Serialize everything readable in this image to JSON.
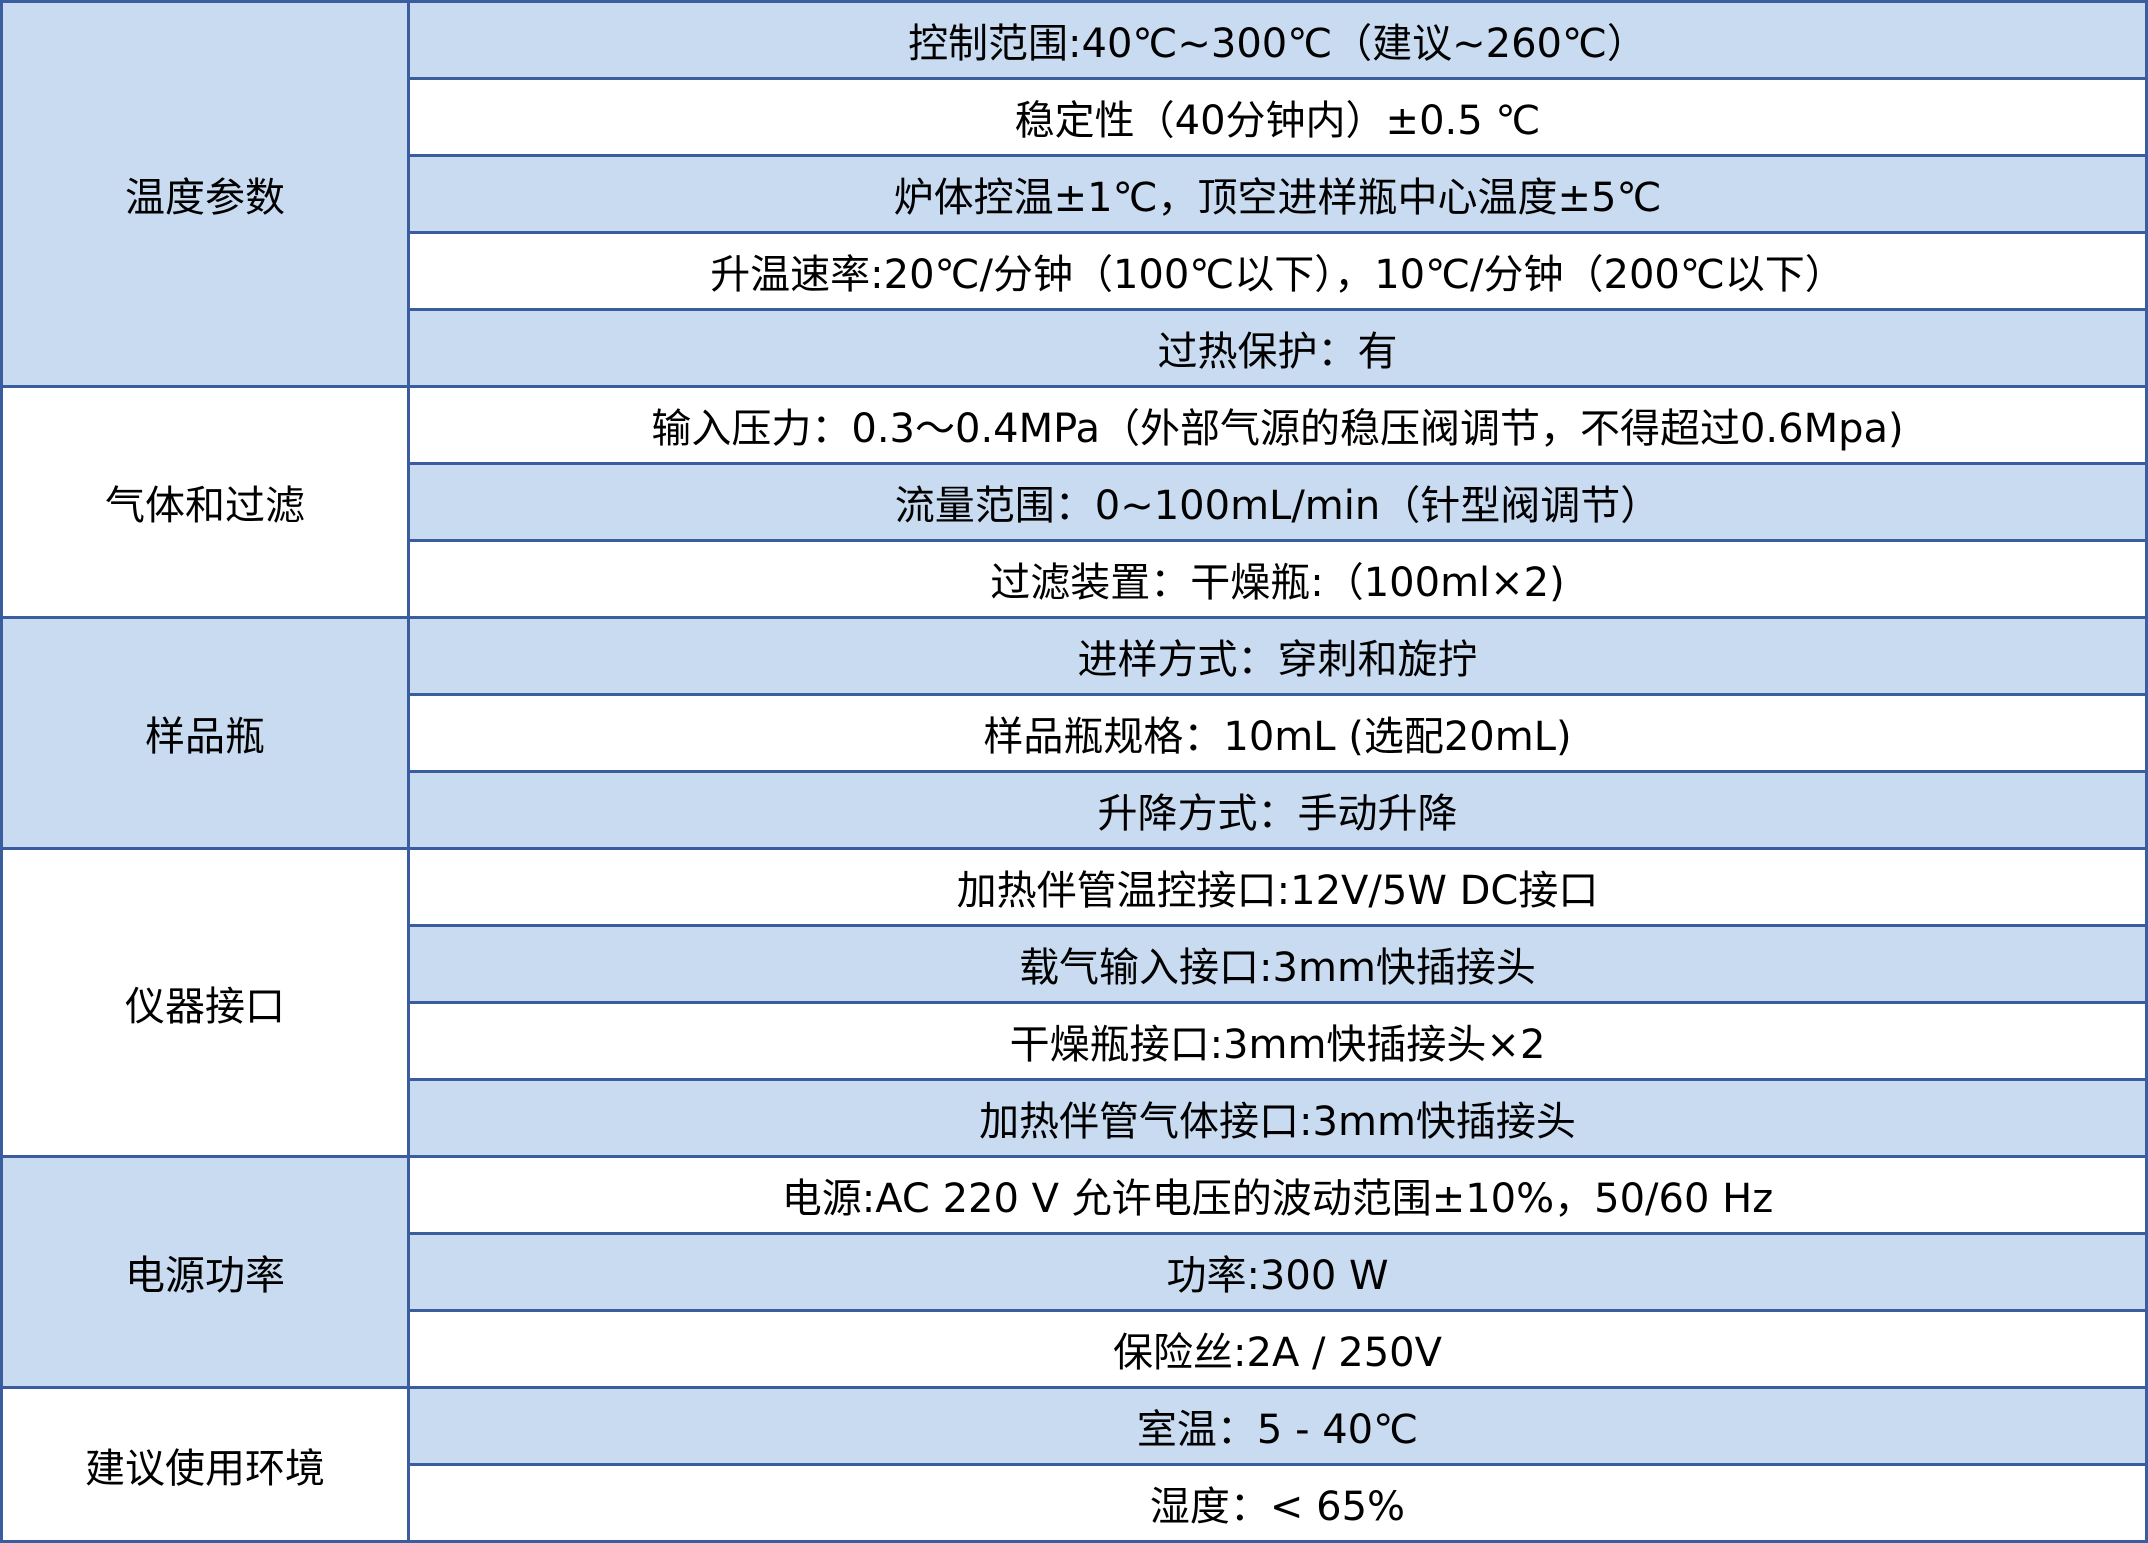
{
  "colors": {
    "row_blue": "#c9dbf0",
    "row_white": "#ffffff",
    "border": "#3a5da0"
  },
  "groups": [
    {
      "category": "温度参数",
      "items": [
        "控制范围:40℃~300℃（建议~260℃）",
        "稳定性（40分钟内）±0.5 ℃",
        "炉体控温±1℃，顶空进样瓶中心温度±5℃",
        "升温速率:20℃/分钟（100℃以下），10℃/分钟（200℃以下）",
        "过热保护：有"
      ]
    },
    {
      "category": "气体和过滤",
      "items": [
        "输入压力：0.3～0.4MPa（外部气源的稳压阀调节，不得超过0.6Mpa)",
        "流量范围：0~100mL/min（针型阀调节）",
        "过滤装置：干燥瓶:（100ml×2)"
      ]
    },
    {
      "category": "样品瓶",
      "items": [
        "进样方式：穿刺和旋拧",
        "样品瓶规格：10mL (选配20mL)",
        "升降方式：手动升降"
      ]
    },
    {
      "category": "仪器接口",
      "items": [
        "加热伴管温控接口:12V/5W DC接口",
        "载气输入接口:3mm快插接头",
        "干燥瓶接口:3mm快插接头×2",
        "加热伴管气体接口:3mm快插接头"
      ]
    },
    {
      "category": "电源功率",
      "items": [
        "电源:AC 220 V 允许电压的波动范围±10%，50/60 Hz",
        "功率:300 W",
        "保险丝:2A / 250V"
      ]
    },
    {
      "category": "建议使用环境",
      "items": [
        "室温：5 - 40℃",
        "湿度：< 65%"
      ]
    }
  ]
}
